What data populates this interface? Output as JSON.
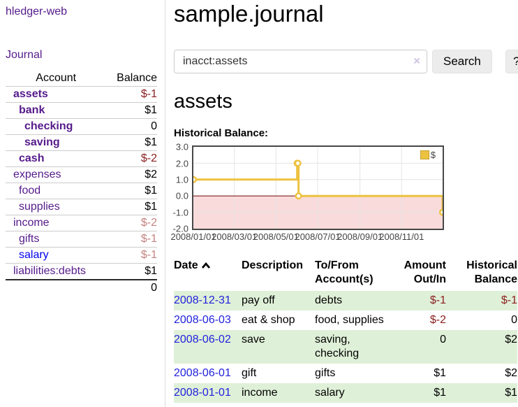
{
  "app": {
    "title": "hledger-web"
  },
  "sidebar": {
    "journal_link": "Journal",
    "columns": {
      "account": "Account",
      "balance": "Balance"
    },
    "accounts": [
      {
        "name": "assets",
        "depth": 1,
        "bold": true,
        "balance": "$-1",
        "balance_class": "neg-strong",
        "link_class": ""
      },
      {
        "name": "bank",
        "depth": 2,
        "bold": true,
        "balance": "$1",
        "balance_class": "",
        "link_class": ""
      },
      {
        "name": "checking",
        "depth": 3,
        "bold": true,
        "balance": "0",
        "balance_class": "",
        "link_class": ""
      },
      {
        "name": "saving",
        "depth": 3,
        "bold": true,
        "balance": "$1",
        "balance_class": "",
        "link_class": ""
      },
      {
        "name": "cash",
        "depth": 2,
        "bold": true,
        "balance": "$-2",
        "balance_class": "neg-strong",
        "link_class": ""
      },
      {
        "name": "expenses",
        "depth": 1,
        "bold": false,
        "balance": "$2",
        "balance_class": "",
        "link_class": ""
      },
      {
        "name": "food",
        "depth": 2,
        "bold": false,
        "balance": "$1",
        "balance_class": "",
        "link_class": ""
      },
      {
        "name": "supplies",
        "depth": 2,
        "bold": false,
        "balance": "$1",
        "balance_class": "",
        "link_class": ""
      },
      {
        "name": "income",
        "depth": 1,
        "bold": false,
        "balance": "$-2",
        "balance_class": "neg-dim",
        "link_class": ""
      },
      {
        "name": "gifts",
        "depth": 2,
        "bold": false,
        "balance": "$-1",
        "balance_class": "neg-dim",
        "link_class": ""
      },
      {
        "name": "salary",
        "depth": 2,
        "bold": false,
        "balance": "$-1",
        "balance_class": "neg-dim",
        "link_class": "blue"
      },
      {
        "name": "liabilities:debts",
        "depth": 1,
        "bold": false,
        "balance": "$1",
        "balance_class": "",
        "link_class": ""
      }
    ],
    "total": "0"
  },
  "main": {
    "title": "sample.journal",
    "search": {
      "value": "inacct:assets",
      "clear_icon": "×",
      "button": "Search",
      "help": "?"
    },
    "heading": "assets",
    "chart_label": "Historical Balance:"
  },
  "chart_data": {
    "type": "line",
    "title": "Historical Balance",
    "steps": true,
    "legend": [
      {
        "label": "$",
        "color": "#EDC240"
      }
    ],
    "legend_position": "top-right",
    "x_ticks": [
      "2008/01/01",
      "2008/03/01",
      "2008/05/01",
      "2008/07/01",
      "2008/09/01",
      "2008/11/01"
    ],
    "y_ticks": [
      "3.0",
      "2.0",
      "1.0",
      "0.0",
      "-1.0",
      "-2.0"
    ],
    "xlim": [
      "2008-01-01",
      "2008-12-31"
    ],
    "ylim": [
      -2,
      3
    ],
    "series": [
      {
        "name": "$",
        "color": "#EDC240",
        "points": [
          [
            "2008-01-01",
            1
          ],
          [
            "2008-06-01",
            2
          ],
          [
            "2008-06-02",
            2
          ],
          [
            "2008-06-03",
            0
          ],
          [
            "2008-12-31",
            -1
          ]
        ]
      }
    ],
    "grid_color": "#e4e4e4",
    "zero_line_color": "#7e1f1f",
    "negative_region_color": "#fadbdb"
  },
  "register": {
    "headers": {
      "date": "Date",
      "description": "Description",
      "tofrom": "To/From Account(s)",
      "amount": "Amount Out/In",
      "balance": "Historical Balance"
    },
    "sort_icon": "chevron-up",
    "rows": [
      {
        "date": "2008-12-31",
        "description": "pay off",
        "accounts": "debts",
        "amount": "$-1",
        "amount_class": "neg",
        "balance": "$-1",
        "balance_class": "neg"
      },
      {
        "date": "2008-06-03",
        "description": "eat & shop",
        "accounts": "food, supplies",
        "amount": "$-2",
        "amount_class": "neg",
        "balance": "0",
        "balance_class": ""
      },
      {
        "date": "2008-06-02",
        "description": "save",
        "accounts": "saving, checking",
        "amount": "0",
        "amount_class": "",
        "balance": "$2",
        "balance_class": ""
      },
      {
        "date": "2008-06-01",
        "description": "gift",
        "accounts": "gifts",
        "amount": "$1",
        "amount_class": "",
        "balance": "$2",
        "balance_class": ""
      },
      {
        "date": "2008-01-01",
        "description": "income",
        "accounts": "salary",
        "amount": "$1",
        "amount_class": "",
        "balance": "$1",
        "balance_class": ""
      }
    ]
  }
}
